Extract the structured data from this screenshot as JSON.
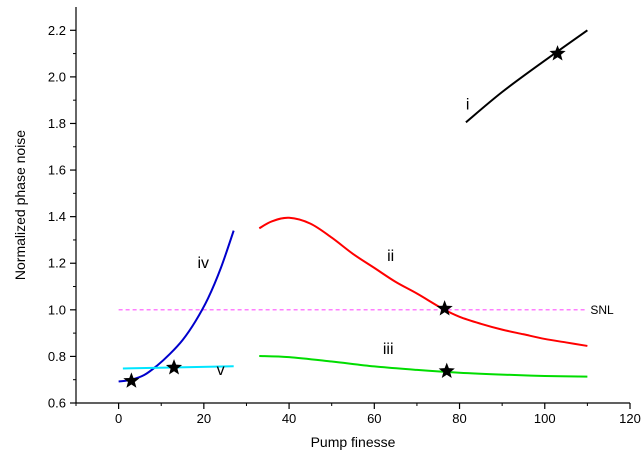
{
  "chart_data": {
    "type": "line",
    "title": "",
    "xlabel": "Pump finesse",
    "ylabel": "Normalized phase noise",
    "xlim": [
      -10,
      120
    ],
    "ylim": [
      0.6,
      2.3
    ],
    "xticks": [
      "0",
      "20",
      "40",
      "60",
      "80",
      "100",
      "120"
    ],
    "yticks": [
      "0.6",
      "0.8",
      "1.0",
      "1.2",
      "1.4",
      "1.6",
      "1.8",
      "2.0",
      "2.2"
    ],
    "grid": false,
    "series": [
      {
        "name": "i",
        "color": "#000000",
        "x": [
          81.5,
          90,
          100,
          110
        ],
        "y": [
          1.805,
          1.935,
          2.07,
          2.2
        ],
        "star": {
          "x": 103,
          "y": 2.1
        }
      },
      {
        "name": "ii",
        "color": "#ff0000",
        "x": [
          33,
          36,
          40,
          45,
          50,
          55,
          60,
          65,
          70,
          76,
          80,
          85,
          90,
          95,
          100,
          105,
          110
        ],
        "y": [
          1.35,
          1.38,
          1.395,
          1.37,
          1.31,
          1.24,
          1.18,
          1.12,
          1.07,
          1.005,
          0.97,
          0.94,
          0.915,
          0.895,
          0.875,
          0.86,
          0.845
        ],
        "star": {
          "x": 76.5,
          "y": 1.005
        }
      },
      {
        "name": "iii",
        "color": "#00dd00",
        "x": [
          33,
          40,
          50,
          60,
          70,
          80,
          90,
          100,
          110
        ],
        "y": [
          0.802,
          0.797,
          0.778,
          0.757,
          0.742,
          0.73,
          0.722,
          0.716,
          0.713
        ],
        "star": {
          "x": 77,
          "y": 0.737
        }
      },
      {
        "name": "iv",
        "color": "#0000cc",
        "x": [
          0,
          3,
          6,
          9,
          12,
          15,
          18,
          21,
          24,
          27
        ],
        "y": [
          0.692,
          0.7,
          0.72,
          0.76,
          0.81,
          0.87,
          0.95,
          1.05,
          1.18,
          1.34
        ],
        "star": {
          "x": 3,
          "y": 0.695
        }
      },
      {
        "name": "v",
        "color": "#00e5ff",
        "x": [
          1,
          27
        ],
        "y": [
          0.748,
          0.758
        ],
        "star": {
          "x": 13,
          "y": 0.752
        }
      }
    ],
    "reference_line": {
      "label": "SNL",
      "y": 1.0,
      "x": [
        0,
        110
      ],
      "color": "#ff55ff",
      "style": "dashed"
    },
    "series_labels": [
      {
        "text": "i",
        "x": 81.5,
        "y": 1.86
      },
      {
        "text": "ii",
        "x": 63,
        "y": 1.21
      },
      {
        "text": "iii",
        "x": 62,
        "y": 0.81
      },
      {
        "text": "iv",
        "x": 18.5,
        "y": 1.18
      },
      {
        "text": "v",
        "x": 23,
        "y": 0.72
      }
    ]
  }
}
